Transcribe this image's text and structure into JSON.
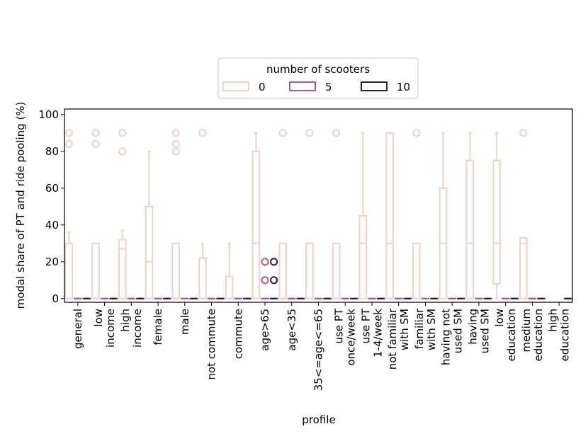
{
  "chart_data": {
    "type": "boxplot",
    "title": "",
    "xlabel": "profile",
    "ylabel": "modal share of PT and ride pooling (%)",
    "ylim": [
      -2,
      103
    ],
    "yticks": [
      0,
      20,
      40,
      60,
      80,
      100
    ],
    "grid": false,
    "legend": {
      "title": "number of scooters",
      "placement": "upper-center-outside",
      "entries": [
        "0",
        "5",
        "10"
      ]
    },
    "categories": [
      "general",
      "low\nincome",
      "high\nincome",
      "female",
      "male",
      "not commute",
      "commute",
      "age>65",
      "age<35",
      "35<=age<=65",
      "use PT\nonce/week",
      "use PT\n1-4/week",
      "not familiar\nwith SM",
      "familiar\nwith SM",
      "having not\nused SM",
      "having\nused SM",
      "low\neducation",
      "medium\neducation",
      "high\neducation"
    ],
    "series": [
      {
        "name": "0",
        "color": "#f0d1c8",
        "boxes": [
          {
            "q1": 0,
            "med": 0,
            "q3": 30,
            "wlo": 0,
            "whi": 36,
            "fliers": [
              84,
              90
            ]
          },
          {
            "q1": 0,
            "med": 0,
            "q3": 30,
            "wlo": 0,
            "whi": 30,
            "fliers": [
              84,
              90
            ]
          },
          {
            "q1": 0,
            "med": 27,
            "q3": 32,
            "wlo": 0,
            "whi": 37,
            "fliers": [
              80,
              90
            ]
          },
          {
            "q1": 0,
            "med": 20,
            "q3": 50,
            "wlo": 0,
            "whi": 80,
            "fliers": []
          },
          {
            "q1": 0,
            "med": 0,
            "q3": 30,
            "wlo": 0,
            "whi": 30,
            "fliers": [
              80,
              84,
              90
            ]
          },
          {
            "q1": 0,
            "med": 0,
            "q3": 22,
            "wlo": 0,
            "whi": 30,
            "fliers": [
              90
            ]
          },
          {
            "q1": 0,
            "med": 0,
            "q3": 12,
            "wlo": 0,
            "whi": 30,
            "fliers": []
          },
          {
            "q1": 0,
            "med": 30,
            "q3": 80,
            "wlo": 0,
            "whi": 90,
            "fliers": []
          },
          {
            "q1": 0,
            "med": 0,
            "q3": 30,
            "wlo": 0,
            "whi": 30,
            "fliers": [
              90
            ]
          },
          {
            "q1": 0,
            "med": 0,
            "q3": 30,
            "wlo": 0,
            "whi": 30,
            "fliers": [
              90
            ]
          },
          {
            "q1": 0,
            "med": 0,
            "q3": 30,
            "wlo": 0,
            "whi": 30,
            "fliers": [
              90
            ]
          },
          {
            "q1": 0,
            "med": 30,
            "q3": 45,
            "wlo": 0,
            "whi": 90,
            "fliers": []
          },
          {
            "q1": 0,
            "med": 30,
            "q3": 90,
            "wlo": 0,
            "whi": 90,
            "fliers": []
          },
          {
            "q1": 0,
            "med": 0,
            "q3": 30,
            "wlo": 0,
            "whi": 30,
            "fliers": [
              90
            ]
          },
          {
            "q1": 0,
            "med": 30,
            "q3": 60,
            "wlo": 0,
            "whi": 90,
            "fliers": []
          },
          {
            "q1": 0,
            "med": 30,
            "q3": 75,
            "wlo": 0,
            "whi": 90,
            "fliers": []
          },
          {
            "q1": 8,
            "med": 30,
            "q3": 75,
            "wlo": 0,
            "whi": 90,
            "fliers": []
          },
          {
            "q1": 0,
            "med": 30,
            "q3": 33,
            "wlo": 0,
            "whi": 33,
            "fliers": [
              90
            ]
          },
          null
        ]
      },
      {
        "name": "5",
        "color": "#a95c96",
        "boxes": [
          {
            "q1": 0,
            "med": 0,
            "q3": 0,
            "wlo": 0,
            "whi": 0,
            "fliers": []
          },
          {
            "q1": 0,
            "med": 0,
            "q3": 0,
            "wlo": 0,
            "whi": 0,
            "fliers": []
          },
          {
            "q1": 0,
            "med": 0,
            "q3": 0,
            "wlo": 0,
            "whi": 0,
            "fliers": []
          },
          {
            "q1": 0,
            "med": 0,
            "q3": 0,
            "wlo": 0,
            "whi": 0,
            "fliers": []
          },
          {
            "q1": 0,
            "med": 0,
            "q3": 0,
            "wlo": 0,
            "whi": 0,
            "fliers": []
          },
          {
            "q1": 0,
            "med": 0,
            "q3": 0,
            "wlo": 0,
            "whi": 0,
            "fliers": []
          },
          {
            "q1": 0,
            "med": 0,
            "q3": 0,
            "wlo": 0,
            "whi": 0,
            "fliers": []
          },
          {
            "q1": 0,
            "med": 0,
            "q3": 0,
            "wlo": 0,
            "whi": 0,
            "fliers": [
              10,
              20
            ]
          },
          {
            "q1": 0,
            "med": 0,
            "q3": 0,
            "wlo": 0,
            "whi": 0,
            "fliers": []
          },
          {
            "q1": 0,
            "med": 0,
            "q3": 0,
            "wlo": 0,
            "whi": 0,
            "fliers": []
          },
          {
            "q1": 0,
            "med": 0,
            "q3": 0,
            "wlo": 0,
            "whi": 0,
            "fliers": []
          },
          {
            "q1": 0,
            "med": 0,
            "q3": 0,
            "wlo": 0,
            "whi": 0,
            "fliers": []
          },
          {
            "q1": 0,
            "med": 0,
            "q3": 0,
            "wlo": 0,
            "whi": 0,
            "fliers": []
          },
          {
            "q1": 0,
            "med": 0,
            "q3": 0,
            "wlo": 0,
            "whi": 0,
            "fliers": []
          },
          {
            "q1": 0,
            "med": 0,
            "q3": 0,
            "wlo": 0,
            "whi": 0,
            "fliers": []
          },
          {
            "q1": 0,
            "med": 0,
            "q3": 0,
            "wlo": 0,
            "whi": 0,
            "fliers": []
          },
          {
            "q1": 0,
            "med": 0,
            "q3": 0,
            "wlo": 0,
            "whi": 0,
            "fliers": []
          },
          {
            "q1": 0,
            "med": 0,
            "q3": 0,
            "wlo": 0,
            "whi": 0,
            "fliers": []
          },
          null
        ]
      },
      {
        "name": "10",
        "color": "#2e1e3b",
        "boxes": [
          {
            "q1": 0,
            "med": 0,
            "q3": 0,
            "wlo": 0,
            "whi": 0,
            "fliers": []
          },
          {
            "q1": 0,
            "med": 0,
            "q3": 0,
            "wlo": 0,
            "whi": 0,
            "fliers": []
          },
          {
            "q1": 0,
            "med": 0,
            "q3": 0,
            "wlo": 0,
            "whi": 0,
            "fliers": []
          },
          {
            "q1": 0,
            "med": 0,
            "q3": 0,
            "wlo": 0,
            "whi": 0,
            "fliers": []
          },
          {
            "q1": 0,
            "med": 0,
            "q3": 0,
            "wlo": 0,
            "whi": 0,
            "fliers": []
          },
          {
            "q1": 0,
            "med": 0,
            "q3": 0,
            "wlo": 0,
            "whi": 0,
            "fliers": []
          },
          {
            "q1": 0,
            "med": 0,
            "q3": 0,
            "wlo": 0,
            "whi": 0,
            "fliers": []
          },
          {
            "q1": 0,
            "med": 0,
            "q3": 0,
            "wlo": 0,
            "whi": 0,
            "fliers": [
              10,
              20
            ]
          },
          {
            "q1": 0,
            "med": 0,
            "q3": 0,
            "wlo": 0,
            "whi": 0,
            "fliers": []
          },
          {
            "q1": 0,
            "med": 0,
            "q3": 0,
            "wlo": 0,
            "whi": 0,
            "fliers": []
          },
          {
            "q1": 0,
            "med": 0,
            "q3": 0,
            "wlo": 0,
            "whi": 0,
            "fliers": []
          },
          {
            "q1": 0,
            "med": 0,
            "q3": 0,
            "wlo": 0,
            "whi": 0,
            "fliers": []
          },
          {
            "q1": 0,
            "med": 0,
            "q3": 0,
            "wlo": 0,
            "whi": 0,
            "fliers": []
          },
          {
            "q1": 0,
            "med": 0,
            "q3": 0,
            "wlo": 0,
            "whi": 0,
            "fliers": []
          },
          {
            "q1": 0,
            "med": 0,
            "q3": 0,
            "wlo": 0,
            "whi": 0,
            "fliers": []
          },
          {
            "q1": 0,
            "med": 0,
            "q3": 0,
            "wlo": 0,
            "whi": 0,
            "fliers": []
          },
          {
            "q1": 0,
            "med": 0,
            "q3": 0,
            "wlo": 0,
            "whi": 0,
            "fliers": []
          },
          {
            "q1": 0,
            "med": 0,
            "q3": 0,
            "wlo": 0,
            "whi": 0,
            "fliers": []
          },
          {
            "q1": 0,
            "med": 0,
            "q3": 0,
            "wlo": 0,
            "whi": 0,
            "fliers": []
          }
        ]
      }
    ]
  }
}
